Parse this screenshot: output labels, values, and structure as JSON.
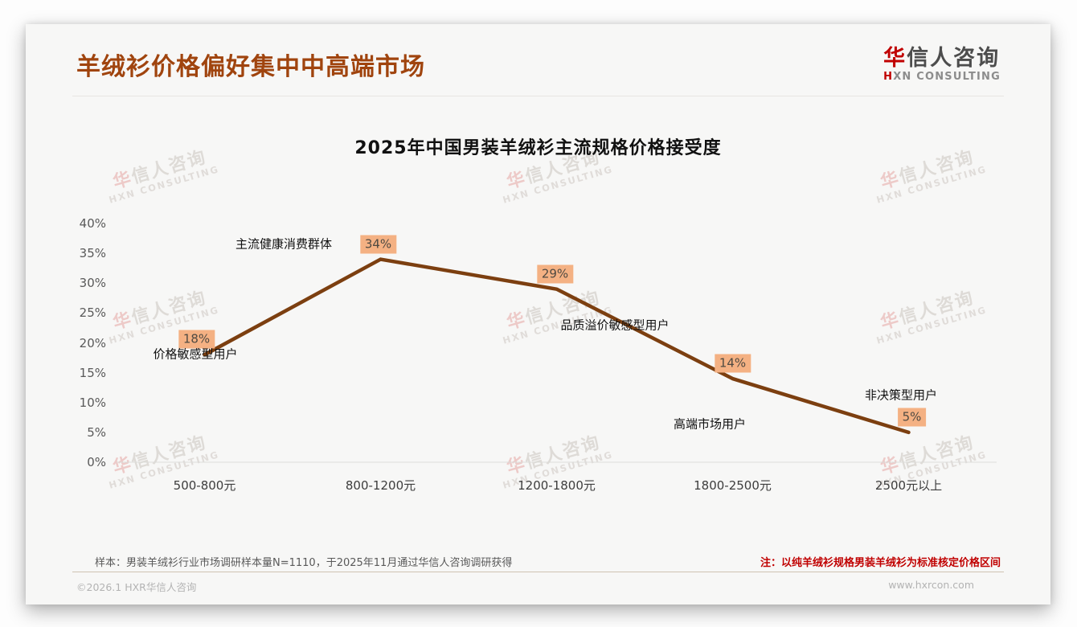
{
  "page": {
    "title": "羊绒衫价格偏好集中中高端市场"
  },
  "logo": {
    "cn_first": "华",
    "cn_rest": "信人咨询",
    "en_first": "H",
    "en_rest": "XN CONSULTING"
  },
  "watermark": {
    "line1": "华信人咨询",
    "line2": "HXN CONSULTING"
  },
  "chart_data": {
    "type": "line",
    "title": "2025年中国男装羊绒衫主流规格价格接受度",
    "categories": [
      "500-800元",
      "800-1200元",
      "1200-1800元",
      "1800-2500元",
      "2500元以上"
    ],
    "values": [
      18,
      34,
      29,
      14,
      5
    ],
    "value_labels": [
      "18%",
      "34%",
      "29%",
      "14%",
      "5%"
    ],
    "annotations": [
      "价格敏感型用户",
      "主流健康消费群体",
      "品质溢价敏感型用户",
      "高端市场用户",
      "非决策型用户"
    ],
    "xlabel": "",
    "ylabel": "",
    "ylim": [
      0,
      40
    ],
    "yticks": [
      "0%",
      "5%",
      "10%",
      "15%",
      "20%",
      "25%",
      "30%",
      "35%",
      "40%"
    ],
    "grid": false,
    "legend": "none",
    "line_color": "#7c3f10",
    "label_bg": "#f4b183"
  },
  "footnotes": {
    "sample": "样本：男装羊绒衫行业市场调研样本量N=1110，于2025年11月通过华信人咨询调研获得",
    "note": "注：以纯羊绒衫规格男装羊绒衫为标准核定价格区间"
  },
  "footer": {
    "copyright": "©2026.1 HXR华信人咨询",
    "website": "www.hxrcon.com"
  },
  "colors": {
    "accent_red": "#c00000",
    "title_rust": "#a0440e",
    "line_brown": "#7c3f10",
    "badge_orange": "#f4b183"
  }
}
